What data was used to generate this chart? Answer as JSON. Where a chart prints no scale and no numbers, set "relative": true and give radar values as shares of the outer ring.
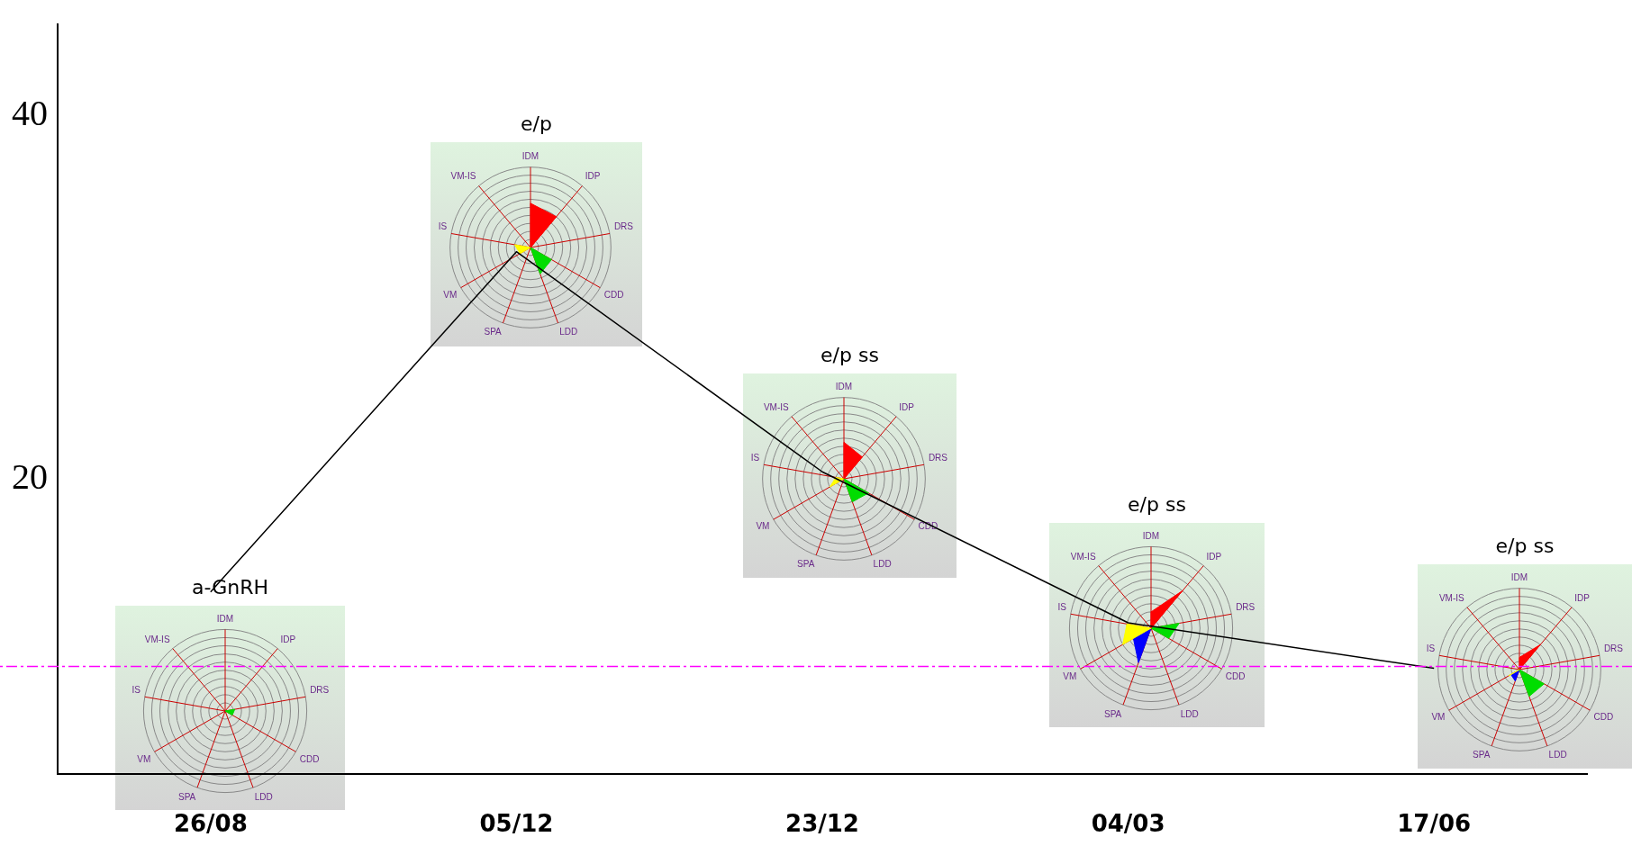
{
  "chart_data": [
    {
      "type": "line",
      "categories": [
        "26/08",
        "05/12",
        "23/12",
        "04/03",
        "17/06"
      ],
      "values": [
        13.8,
        32.5,
        20.4,
        12.1,
        9.6
      ],
      "color": "#000000",
      "ylim": [
        3.8,
        45
      ],
      "yticks": [
        20,
        40
      ],
      "grid": false,
      "legend": false,
      "marker": "none",
      "line_style": "solid",
      "ref_lines": [
        {
          "axis": "y",
          "value": 9.7,
          "color": "#ff00ff",
          "line_style": "dashed"
        }
      ]
    },
    {
      "type": "radar",
      "title": "a-GnRH",
      "relative": true,
      "categories": [
        "IDM",
        "IDP",
        "DRS",
        "CDD",
        "LDD",
        "SPA",
        "VM",
        "IS",
        "VM-IS"
      ],
      "series": [
        {
          "color": "#00dd00",
          "values": [
            0,
            0,
            0.12,
            0.1,
            0,
            0,
            0,
            0,
            0
          ]
        }
      ]
    },
    {
      "type": "radar",
      "title": "e/p",
      "relative": true,
      "categories": [
        "IDM",
        "IDP",
        "DRS",
        "CDD",
        "LDD",
        "SPA",
        "VM",
        "IS",
        "VM-IS"
      ],
      "series": [
        {
          "color": "#ff0000",
          "values": [
            0.55,
            0.5,
            0,
            0,
            0,
            0,
            0,
            0,
            0
          ]
        },
        {
          "color": "#00dd00",
          "values": [
            0,
            0,
            0,
            0.3,
            0.35,
            0,
            0,
            0,
            0
          ]
        },
        {
          "color": "#ffff00",
          "values": [
            0,
            0,
            0,
            0,
            0,
            0,
            0.15,
            0.2,
            0
          ]
        }
      ]
    },
    {
      "type": "radar",
      "title": "e/p ss",
      "relative": true,
      "categories": [
        "IDM",
        "IDP",
        "DRS",
        "CDD",
        "LDD",
        "SPA",
        "VM",
        "IS",
        "VM-IS"
      ],
      "series": [
        {
          "color": "#ff0000",
          "values": [
            0.45,
            0.35,
            0,
            0,
            0,
            0,
            0,
            0,
            0
          ]
        },
        {
          "color": "#00dd00",
          "values": [
            0,
            0,
            0,
            0.35,
            0.3,
            0,
            0,
            0,
            0
          ]
        },
        {
          "color": "#ffff00",
          "values": [
            0,
            0,
            0,
            0,
            0,
            0,
            0.2,
            0.1,
            0
          ]
        }
      ]
    },
    {
      "type": "radar",
      "title": "e/p ss",
      "relative": true,
      "categories": [
        "IDM",
        "IDP",
        "DRS",
        "CDD",
        "LDD",
        "SPA",
        "VM",
        "IS",
        "VM-IS"
      ],
      "series": [
        {
          "color": "#ff0000",
          "values": [
            0.2,
            0.6,
            0,
            0,
            0,
            0,
            0,
            0,
            0
          ]
        },
        {
          "color": "#00dd00",
          "values": [
            0,
            0,
            0.35,
            0.25,
            0,
            0,
            0,
            0,
            0
          ]
        },
        {
          "color": "#ffff00",
          "values": [
            0,
            0,
            0,
            0,
            0,
            0,
            0.4,
            0.3,
            0
          ]
        },
        {
          "color": "#0000ff",
          "values": [
            0,
            0,
            0,
            0,
            0,
            0.45,
            0.25,
            0,
            0
          ]
        }
      ]
    },
    {
      "type": "radar",
      "title": "e/p ss",
      "relative": true,
      "categories": [
        "IDM",
        "IDP",
        "DRS",
        "CDD",
        "LDD",
        "SPA",
        "VM",
        "IS",
        "VM-IS"
      ],
      "series": [
        {
          "color": "#ff0000",
          "values": [
            0.15,
            0.4,
            0,
            0,
            0,
            0,
            0,
            0,
            0
          ]
        },
        {
          "color": "#00dd00",
          "values": [
            0,
            0,
            0,
            0.35,
            0.35,
            0,
            0,
            0,
            0
          ]
        },
        {
          "color": "#ffff00",
          "values": [
            0,
            0,
            0,
            0,
            0,
            0,
            0.15,
            0,
            0
          ]
        },
        {
          "color": "#0000ff",
          "values": [
            0,
            0,
            0,
            0,
            0,
            0.15,
            0.12,
            0,
            0
          ]
        }
      ]
    }
  ]
}
